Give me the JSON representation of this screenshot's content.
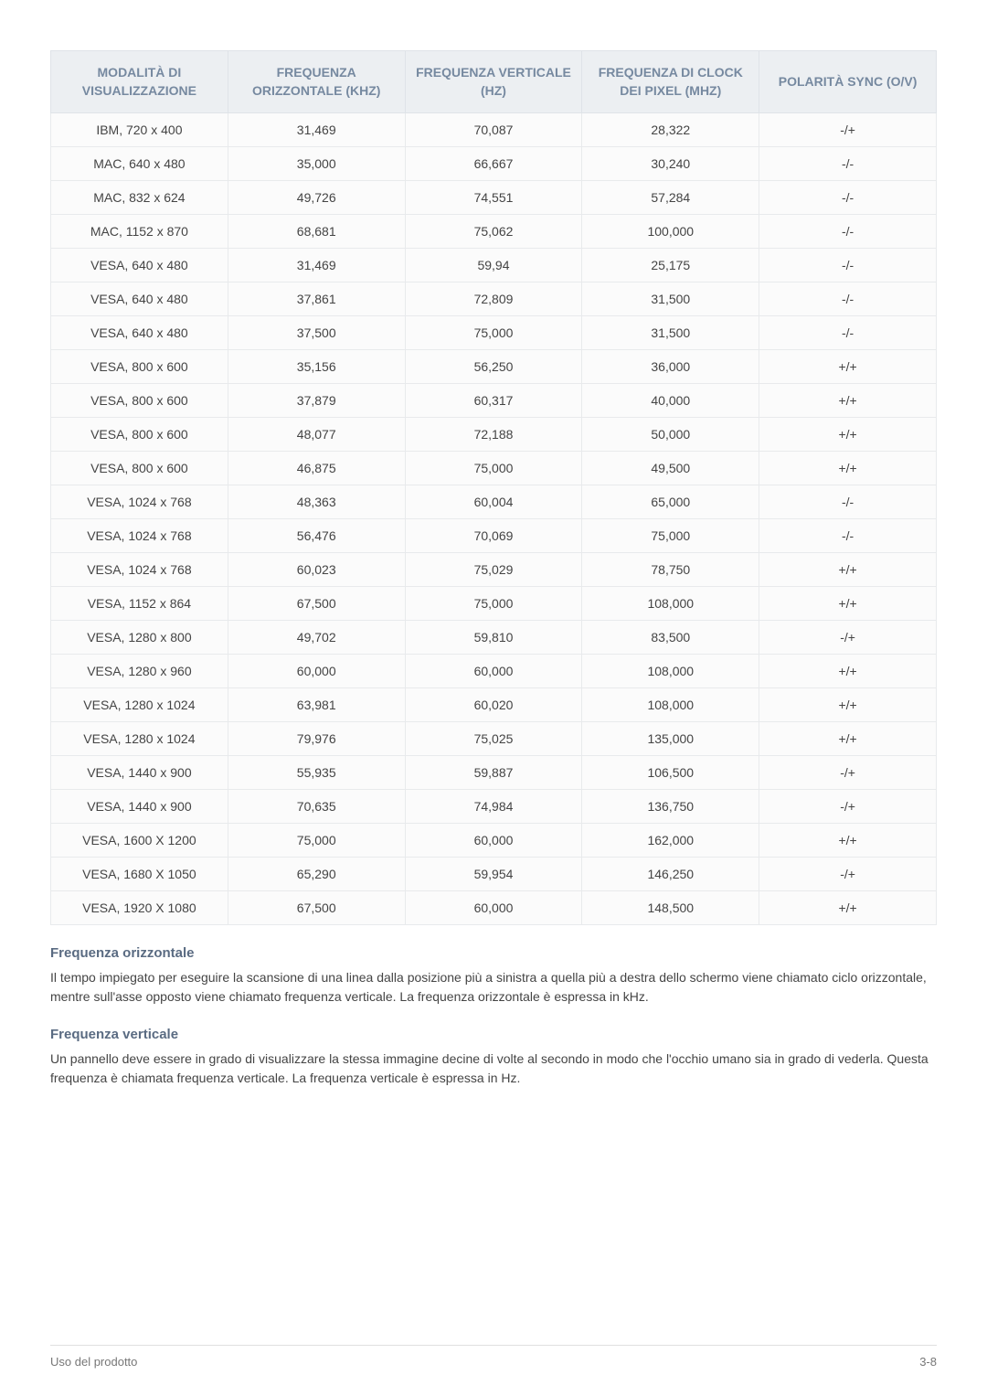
{
  "table": {
    "headers": [
      "MODALITÀ DI VISUALIZZAZIONE",
      "FREQUENZA ORIZZONTALE (KHZ)",
      "FREQUENZA VERTICALE (HZ)",
      "FREQUENZA DI CLOCK DEI PIXEL (MHZ)",
      "POLARITÀ SYNC (O/V)"
    ],
    "colwidths": [
      "20%",
      "20%",
      "20%",
      "20%",
      "20%"
    ],
    "rows": [
      [
        "IBM, 720 x 400",
        "31,469",
        "70,087",
        "28,322",
        "-/+"
      ],
      [
        "MAC, 640 x 480",
        "35,000",
        "66,667",
        "30,240",
        "-/-"
      ],
      [
        "MAC, 832 x 624",
        "49,726",
        "74,551",
        "57,284",
        "-/-"
      ],
      [
        "MAC, 1152 x 870",
        "68,681",
        "75,062",
        "100,000",
        "-/-"
      ],
      [
        "VESA, 640 x 480",
        "31,469",
        "59,94",
        "25,175",
        "-/-"
      ],
      [
        "VESA, 640 x 480",
        "37,861",
        "72,809",
        "31,500",
        "-/-"
      ],
      [
        "VESA, 640 x 480",
        "37,500",
        "75,000",
        "31,500",
        "-/-"
      ],
      [
        "VESA, 800 x 600",
        "35,156",
        "56,250",
        "36,000",
        "+/+"
      ],
      [
        "VESA, 800 x 600",
        "37,879",
        "60,317",
        "40,000",
        "+/+"
      ],
      [
        "VESA, 800 x 600",
        "48,077",
        "72,188",
        "50,000",
        "+/+"
      ],
      [
        "VESA, 800 x 600",
        "46,875",
        "75,000",
        "49,500",
        "+/+"
      ],
      [
        "VESA, 1024 x 768",
        "48,363",
        "60,004",
        "65,000",
        "-/-"
      ],
      [
        "VESA, 1024 x 768",
        "56,476",
        "70,069",
        "75,000",
        "-/-"
      ],
      [
        "VESA, 1024 x 768",
        "60,023",
        "75,029",
        "78,750",
        "+/+"
      ],
      [
        "VESA, 1152 x 864",
        "67,500",
        "75,000",
        "108,000",
        "+/+"
      ],
      [
        "VESA, 1280 x 800",
        "49,702",
        "59,810",
        "83,500",
        "-/+"
      ],
      [
        "VESA, 1280 x 960",
        "60,000",
        "60,000",
        "108,000",
        "+/+"
      ],
      [
        "VESA, 1280 x 1024",
        "63,981",
        "60,020",
        "108,000",
        "+/+"
      ],
      [
        "VESA, 1280 x 1024",
        "79,976",
        "75,025",
        "135,000",
        "+/+"
      ],
      [
        "VESA, 1440 x 900",
        "55,935",
        "59,887",
        "106,500",
        "-/+"
      ],
      [
        "VESA, 1440 x 900",
        "70,635",
        "74,984",
        "136,750",
        "-/+"
      ],
      [
        "VESA, 1600 X 1200",
        "75,000",
        "60,000",
        "162,000",
        "+/+"
      ],
      [
        "VESA, 1680 X 1050",
        "65,290",
        "59,954",
        "146,250",
        "-/+"
      ],
      [
        "VESA, 1920 X 1080",
        "67,500",
        "60,000",
        "148,500",
        "+/+"
      ]
    ]
  },
  "sections": [
    {
      "heading": "Frequenza orizzontale",
      "body": "Il tempo impiegato per eseguire la scansione di una linea dalla posizione più a sinistra a quella più a destra dello schermo viene chiamato ciclo orizzontale, mentre sull'asse opposto viene chiamato frequenza verticale. La frequenza orizzontale è espressa in kHz."
    },
    {
      "heading": "Frequenza verticale",
      "body": "Un pannello deve essere in grado di visualizzare la stessa immagine decine di volte al secondo in modo che l'occhio umano sia in grado di vederla. Questa frequenza è chiamata frequenza verticale. La frequenza verticale è espressa in Hz."
    }
  ],
  "footer": {
    "left": "Uso del prodotto",
    "right": "3-8"
  }
}
